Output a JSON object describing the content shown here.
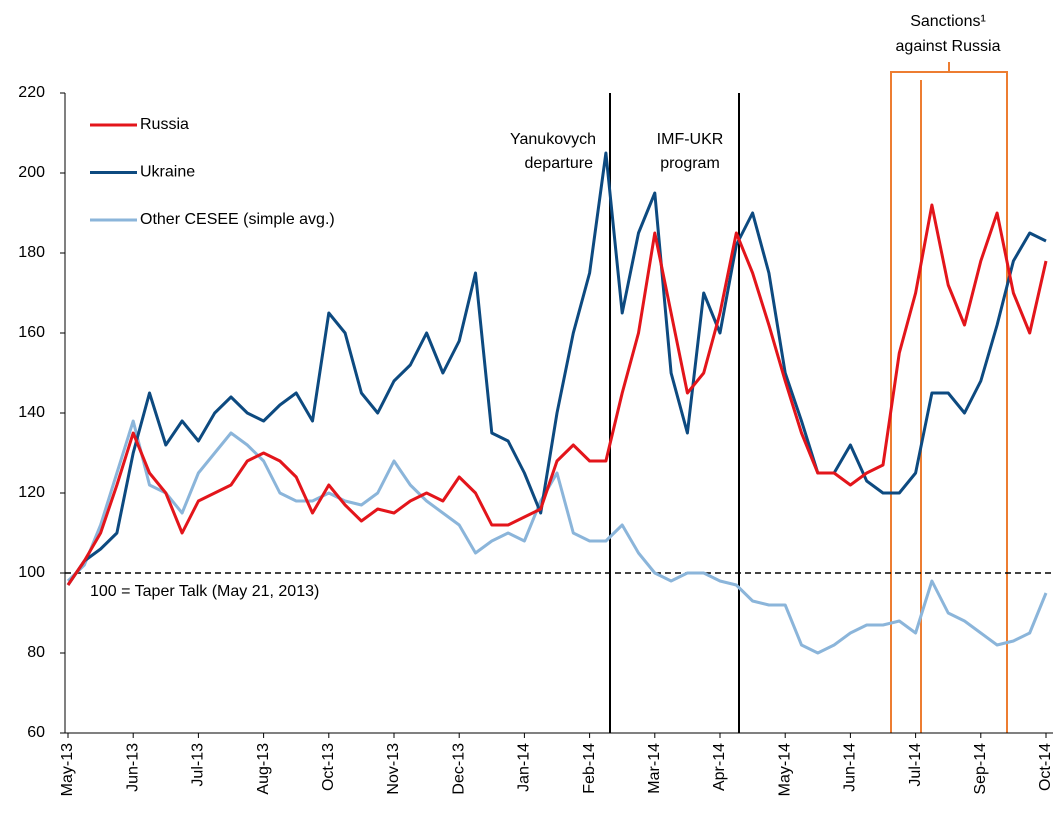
{
  "chart_data": {
    "type": "line",
    "categories": [
      "May-13",
      null,
      null,
      null,
      "Jun-13",
      null,
      null,
      null,
      "Jul-13",
      null,
      null,
      null,
      "Aug-13",
      null,
      null,
      null,
      "Oct-13",
      null,
      null,
      null,
      "Nov-13",
      null,
      null,
      null,
      "Dec-13",
      null,
      null,
      null,
      "Jan-14",
      null,
      null,
      null,
      "Feb-14",
      null,
      null,
      null,
      "Mar-14",
      null,
      null,
      null,
      "Apr-14",
      null,
      null,
      null,
      "May-14",
      null,
      null,
      null,
      "Jun-14",
      null,
      null,
      null,
      "Jul-14",
      null,
      null,
      null,
      "Sep-14",
      null,
      null,
      null,
      "Oct-14"
    ],
    "series": [
      {
        "name": "Russia",
        "color": "#e3151b",
        "values": [
          97,
          103,
          110,
          122,
          135,
          125,
          120,
          110,
          118,
          120,
          122,
          128,
          130,
          128,
          124,
          115,
          122,
          117,
          113,
          116,
          115,
          118,
          120,
          118,
          124,
          120,
          112,
          112,
          114,
          116,
          128,
          132,
          128,
          128,
          145,
          160,
          185,
          165,
          145,
          150,
          165,
          185,
          175,
          162,
          148,
          135,
          125,
          125,
          122,
          125,
          127,
          155,
          170,
          192,
          172,
          162,
          178,
          190,
          170,
          160,
          178
        ]
      },
      {
        "name": "Ukraine",
        "color": "#0d4a80",
        "values": [
          97,
          103,
          106,
          110,
          130,
          145,
          132,
          138,
          133,
          140,
          144,
          140,
          138,
          142,
          145,
          138,
          165,
          160,
          145,
          140,
          148,
          152,
          160,
          150,
          158,
          175,
          135,
          133,
          125,
          115,
          140,
          160,
          175,
          205,
          165,
          185,
          195,
          150,
          135,
          170,
          160,
          182,
          190,
          175,
          150,
          138,
          125,
          125,
          132,
          123,
          120,
          120,
          125,
          145,
          145,
          140,
          148,
          162,
          178,
          185,
          183
        ]
      },
      {
        "name": "Other CESEE (simple avg.)",
        "color": "#8bb5da",
        "values": [
          98,
          102,
          112,
          125,
          138,
          122,
          120,
          115,
          125,
          130,
          135,
          132,
          128,
          120,
          118,
          118,
          120,
          118,
          117,
          120,
          128,
          122,
          118,
          115,
          112,
          105,
          108,
          110,
          108,
          118,
          125,
          110,
          108,
          108,
          112,
          105,
          100,
          98,
          100,
          100,
          98,
          97,
          93,
          92,
          92,
          82,
          80,
          82,
          85,
          87,
          87,
          88,
          85,
          98,
          90,
          88,
          85,
          82,
          83,
          85,
          95
        ]
      }
    ],
    "ylim": [
      60,
      220
    ],
    "yticks": [
      60,
      80,
      100,
      120,
      140,
      160,
      180,
      200,
      220
    ],
    "grid": false,
    "reference_line": {
      "value": 100,
      "label": "100 = Taper Talk (May 21, 2013)"
    },
    "annotations": {
      "yanukovych": [
        "Yanukovych",
        "departure"
      ],
      "imf": [
        "IMF-UKR",
        "program"
      ],
      "sanctions": [
        "Sanctions¹",
        "against Russia"
      ]
    },
    "legend": "top-left"
  }
}
